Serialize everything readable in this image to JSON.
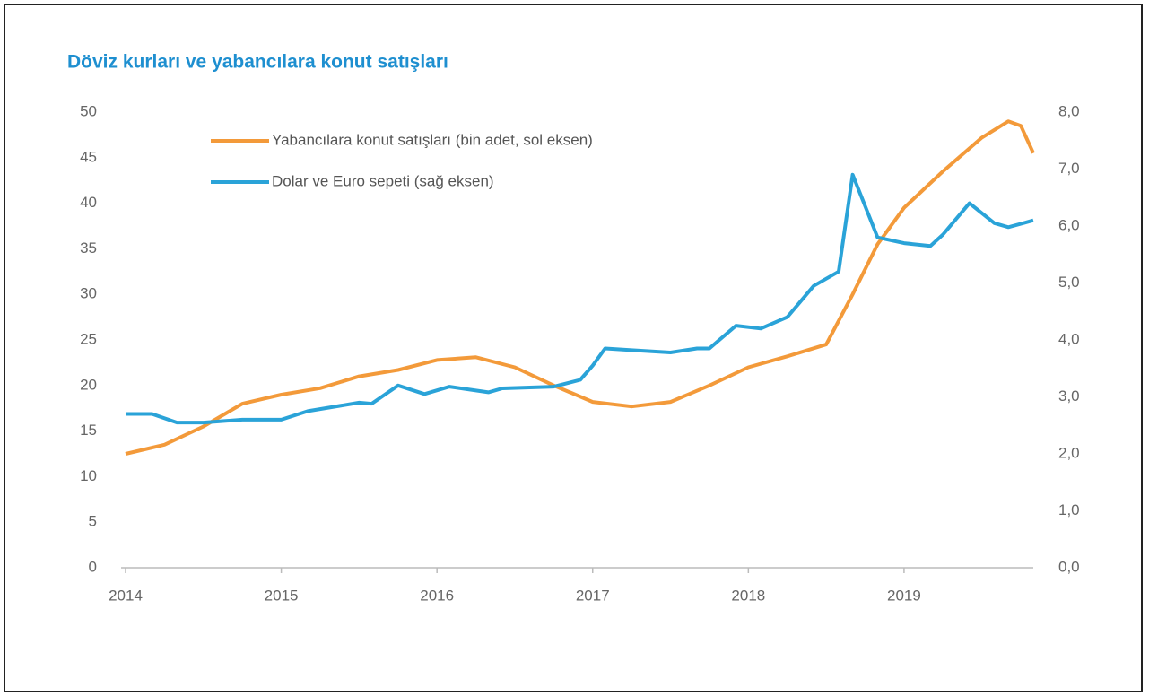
{
  "chart_data": {
    "type": "line",
    "title": "Döviz kurları ve yabancılara konut satışları",
    "xlim": [
      2014,
      2019.83
    ],
    "xticks": [
      2014,
      2015,
      2016,
      2017,
      2018,
      2019
    ],
    "ylim": [
      0,
      50
    ],
    "yticks": [
      0,
      5,
      10,
      15,
      20,
      25,
      30,
      35,
      40,
      45,
      50
    ],
    "y2lim": [
      0,
      8
    ],
    "y2ticks": [
      {
        "value": 0,
        "label": "0,0"
      },
      {
        "value": 1,
        "label": "1,0"
      },
      {
        "value": 2,
        "label": "2,0"
      },
      {
        "value": 3,
        "label": "3,0"
      },
      {
        "value": 4,
        "label": "4,0"
      },
      {
        "value": 5,
        "label": "5,0"
      },
      {
        "value": 6,
        "label": "6,0"
      },
      {
        "value": 7,
        "label": "7,0"
      },
      {
        "value": 8,
        "label": "8,0"
      }
    ],
    "legend": "upper left",
    "series": [
      {
        "name": "Yabancılara konut satışları (bin adet, sol eksen)",
        "color": "#f39a3a",
        "x": [
          2014.0,
          2014.25,
          2014.5,
          2014.75,
          2015.0,
          2015.25,
          2015.5,
          2015.75,
          2016.0,
          2016.25,
          2016.5,
          2016.75,
          2017.0,
          2017.25,
          2017.5,
          2017.75,
          2018.0,
          2018.25,
          2018.5,
          2018.67,
          2018.83,
          2019.0,
          2019.25,
          2019.5,
          2019.67,
          2019.75,
          2019.83
        ],
        "values": [
          12.5,
          13.5,
          15.5,
          18,
          19,
          19.7,
          21,
          21.7,
          22.8,
          23.1,
          22,
          20,
          18.2,
          17.7,
          18.2,
          20,
          22,
          23.2,
          24.5,
          30,
          35.5,
          39.5,
          43.5,
          47.2,
          49,
          48.5,
          45.5
        ]
      },
      {
        "name": "Dolar ve Euro sepeti (sağ eksen)",
        "color": "#2aa3d8",
        "axis": "y2",
        "x": [
          2014.0,
          2014.17,
          2014.33,
          2014.5,
          2014.75,
          2015.0,
          2015.17,
          2015.5,
          2015.58,
          2015.75,
          2015.92,
          2016.08,
          2016.33,
          2016.42,
          2016.75,
          2016.92,
          2017.0,
          2017.08,
          2017.25,
          2017.5,
          2017.67,
          2017.75,
          2017.92,
          2018.08,
          2018.25,
          2018.42,
          2018.58,
          2018.67,
          2018.83,
          2019.0,
          2019.17,
          2019.25,
          2019.42,
          2019.58,
          2019.67,
          2019.83
        ],
        "values": [
          2.7,
          2.7,
          2.55,
          2.55,
          2.6,
          2.6,
          2.75,
          2.9,
          2.88,
          3.2,
          3.05,
          3.18,
          3.08,
          3.15,
          3.18,
          3.3,
          3.55,
          3.85,
          3.82,
          3.78,
          3.85,
          3.85,
          4.25,
          4.2,
          4.4,
          4.95,
          5.2,
          6.9,
          5.8,
          5.7,
          5.65,
          5.85,
          6.4,
          6.05,
          5.98,
          6.1
        ]
      }
    ]
  }
}
